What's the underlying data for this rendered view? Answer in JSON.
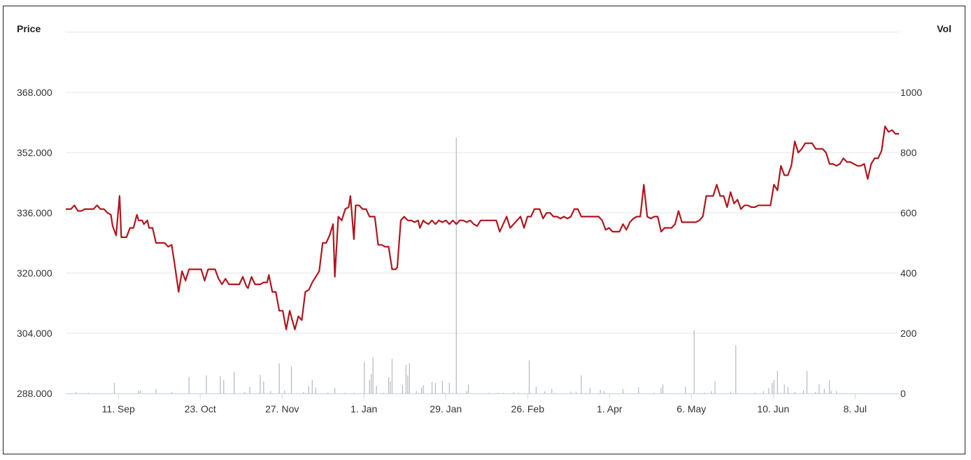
{
  "chart_data": {
    "type": "line",
    "title": "",
    "y_left_label": "Price",
    "y_right_label": "Vol",
    "y_left_ticks": [
      "288.000",
      "304.000",
      "320.000",
      "336.000",
      "352.000",
      "368.000"
    ],
    "y_left_range": [
      288,
      384
    ],
    "y_right_ticks": [
      "0",
      "200",
      "400",
      "600",
      "800",
      "1000"
    ],
    "y_right_range": [
      0,
      1200
    ],
    "x_ticks": [
      "11. Sep",
      "23. Oct",
      "27. Nov",
      "1. Jan",
      "29. Jan",
      "26. Feb",
      "1. Apr",
      "6. May",
      "10. Jun",
      "8. Jul"
    ],
    "x_tick_index": [
      18,
      46,
      74,
      102,
      130,
      158,
      186,
      214,
      242,
      270
    ],
    "x_count": 286,
    "grid": true,
    "colors": {
      "price": "#b0161e",
      "volume": "#b8b8b8",
      "grid": "#e6e6e6",
      "axis": "#cfd8e6"
    },
    "price": [
      [
        0,
        337
      ],
      [
        3,
        337
      ],
      [
        5,
        338
      ],
      [
        7,
        336.5
      ],
      [
        9,
        336.5
      ],
      [
        11,
        337
      ],
      [
        16,
        337
      ],
      [
        18,
        338
      ],
      [
        20,
        337
      ],
      [
        22,
        337
      ],
      [
        24,
        336
      ],
      [
        26,
        335.5
      ],
      [
        27,
        332.5
      ],
      [
        29,
        330
      ],
      [
        31,
        340.5
      ],
      [
        32,
        329.5
      ],
      [
        35,
        329.5
      ],
      [
        37,
        332
      ],
      [
        39,
        332
      ],
      [
        41,
        335.5
      ],
      [
        42,
        334
      ],
      [
        44,
        334
      ],
      [
        45,
        333
      ],
      [
        47,
        334
      ],
      [
        48,
        332
      ],
      [
        50,
        332
      ],
      [
        52,
        328
      ],
      [
        56,
        328
      ],
      [
        57,
        328
      ],
      [
        59,
        327
      ],
      [
        61,
        327.5
      ],
      [
        63,
        321.5
      ],
      [
        65,
        315
      ],
      [
        67,
        320.5
      ],
      [
        69,
        318
      ],
      [
        71,
        321
      ],
      [
        76,
        321
      ],
      [
        78,
        321
      ],
      [
        80,
        318
      ],
      [
        82,
        321
      ],
      [
        86,
        321
      ],
      [
        88,
        318.5
      ],
      [
        90,
        317
      ],
      [
        92,
        318.5
      ],
      [
        94,
        317
      ],
      [
        100,
        317
      ],
      [
        102,
        319
      ],
      [
        104,
        316.5
      ],
      [
        105,
        316
      ],
      [
        107,
        319
      ],
      [
        109,
        317
      ],
      [
        112,
        317
      ],
      [
        114,
        317.5
      ],
      [
        116,
        317.5
      ],
      [
        117,
        319.5
      ],
      [
        119,
        315
      ],
      [
        121,
        315
      ],
      [
        123,
        310
      ],
      [
        125,
        310
      ],
      [
        127,
        305
      ],
      [
        129,
        310
      ],
      [
        132,
        305
      ],
      [
        134,
        308.5
      ],
      [
        136,
        307.5
      ],
      [
        138,
        315
      ],
      [
        140,
        315.5
      ],
      [
        142,
        317.5
      ],
      [
        144,
        319
      ],
      [
        146,
        320.5
      ],
      [
        148,
        328
      ],
      [
        150,
        328
      ],
      [
        152,
        330
      ],
      [
        154,
        333
      ],
      [
        155,
        319
      ],
      [
        157,
        335
      ],
      [
        159,
        334
      ],
      [
        161,
        337
      ],
      [
        163,
        337.5
      ],
      [
        164,
        340.5
      ],
      [
        166,
        329
      ],
      [
        167,
        338
      ],
      [
        169,
        338
      ],
      [
        171,
        337
      ],
      [
        173,
        337
      ],
      [
        175,
        335
      ],
      [
        178,
        335
      ],
      [
        180,
        327.5
      ],
      [
        182,
        327.5
      ],
      [
        184,
        327
      ],
      [
        186,
        327
      ],
      [
        188,
        321
      ],
      [
        190,
        321
      ],
      [
        191,
        321.5
      ],
      [
        193,
        334
      ],
      [
        195,
        335
      ],
      [
        197,
        334
      ],
      [
        199,
        334
      ],
      [
        201,
        333.5
      ],
      [
        203,
        334
      ],
      [
        204,
        332
      ],
      [
        206,
        334
      ],
      [
        207,
        333.5
      ],
      [
        209,
        333
      ],
      [
        211,
        334
      ],
      [
        213,
        333
      ],
      [
        215,
        334
      ],
      [
        217,
        333.5
      ],
      [
        219,
        334
      ],
      [
        221,
        333
      ],
      [
        223,
        334
      ],
      [
        225,
        333
      ],
      [
        227,
        334
      ],
      [
        229,
        334
      ],
      [
        231,
        333.5
      ],
      [
        233,
        334
      ],
      [
        235,
        333
      ],
      [
        237,
        332.5
      ],
      [
        239,
        334
      ],
      [
        243,
        334
      ],
      [
        245,
        334
      ],
      [
        246,
        334
      ],
      [
        248,
        334
      ],
      [
        250,
        331
      ],
      [
        252,
        333
      ],
      [
        254,
        335
      ],
      [
        256,
        332
      ],
      [
        258,
        333
      ],
      [
        260,
        334
      ],
      [
        262,
        335
      ],
      [
        264,
        332
      ],
      [
        266,
        335
      ],
      [
        268,
        335
      ],
      [
        270,
        337
      ],
      [
        272,
        337
      ],
      [
        273,
        337
      ],
      [
        275,
        334.5
      ],
      [
        277,
        336
      ],
      [
        279,
        336
      ],
      [
        281,
        335
      ],
      [
        283,
        335
      ],
      [
        285,
        334.5
      ],
      [
        287,
        335
      ],
      [
        289,
        334.5
      ],
      [
        291,
        335
      ],
      [
        293,
        337
      ],
      [
        295,
        337
      ],
      [
        297,
        335
      ],
      [
        299,
        335
      ],
      [
        301,
        335
      ],
      [
        304,
        335
      ],
      [
        307,
        335
      ],
      [
        309,
        334
      ],
      [
        311,
        331.5
      ],
      [
        313,
        332
      ],
      [
        315,
        331
      ],
      [
        317,
        331
      ],
      [
        319,
        331
      ],
      [
        321,
        333
      ],
      [
        323,
        331.5
      ],
      [
        325,
        333.5
      ],
      [
        327,
        334.5
      ],
      [
        329,
        335
      ],
      [
        331,
        335
      ],
      [
        333,
        343.5
      ],
      [
        335,
        335
      ],
      [
        337,
        334.5
      ],
      [
        339,
        335
      ],
      [
        341,
        335
      ],
      [
        343,
        331
      ],
      [
        345,
        332
      ],
      [
        347,
        332
      ],
      [
        349,
        332
      ],
      [
        351,
        333
      ],
      [
        353,
        336.5
      ],
      [
        355,
        333.5
      ],
      [
        357,
        333.5
      ],
      [
        359,
        333.5
      ],
      [
        361,
        333.5
      ],
      [
        363,
        333.5
      ],
      [
        365,
        334
      ],
      [
        367,
        335
      ],
      [
        369,
        340.5
      ],
      [
        371,
        340.5
      ],
      [
        373,
        340.5
      ],
      [
        375,
        343.5
      ],
      [
        377,
        340.5
      ],
      [
        379,
        340.5
      ],
      [
        381,
        337.5
      ],
      [
        383,
        341.5
      ],
      [
        385,
        338.5
      ],
      [
        387,
        339.5
      ],
      [
        389,
        337
      ],
      [
        391,
        338
      ],
      [
        393,
        338
      ],
      [
        395,
        337.5
      ],
      [
        397,
        337.5
      ],
      [
        399,
        338
      ],
      [
        401,
        338
      ],
      [
        404,
        338
      ],
      [
        406,
        338
      ],
      [
        408,
        343.5
      ],
      [
        410,
        342
      ],
      [
        412,
        348.5
      ],
      [
        414,
        346
      ],
      [
        416,
        346
      ],
      [
        418,
        348.5
      ],
      [
        420,
        355
      ],
      [
        422,
        352
      ],
      [
        424,
        353
      ],
      [
        426,
        354.5
      ],
      [
        428,
        354.5
      ],
      [
        430,
        354.5
      ],
      [
        432,
        353
      ],
      [
        434,
        353
      ],
      [
        436,
        353
      ],
      [
        438,
        352
      ],
      [
        440,
        349
      ],
      [
        442,
        349
      ],
      [
        444,
        348.5
      ],
      [
        446,
        349
      ],
      [
        448,
        350.5
      ],
      [
        450,
        349.5
      ],
      [
        452,
        349.5
      ],
      [
        454,
        349
      ],
      [
        456,
        348.5
      ],
      [
        458,
        348.5
      ],
      [
        460,
        349
      ],
      [
        462,
        345
      ],
      [
        464,
        349
      ],
      [
        466,
        350.5
      ],
      [
        468,
        350.5
      ],
      [
        470,
        352.5
      ],
      [
        472,
        359
      ],
      [
        474,
        357.5
      ],
      [
        476,
        358
      ],
      [
        478,
        357
      ],
      [
        480,
        357
      ]
    ],
    "volume": [
      [
        6,
        5
      ],
      [
        13,
        3
      ],
      [
        28,
        35
      ],
      [
        42,
        12
      ],
      [
        43,
        8
      ],
      [
        52,
        15
      ],
      [
        61,
        4
      ],
      [
        71,
        55
      ],
      [
        81,
        60
      ],
      [
        89,
        58
      ],
      [
        91,
        45
      ],
      [
        97,
        72
      ],
      [
        103,
        4
      ],
      [
        106,
        22
      ],
      [
        112,
        62
      ],
      [
        114,
        40
      ],
      [
        118,
        8
      ],
      [
        123,
        100
      ],
      [
        126,
        10
      ],
      [
        130,
        90
      ],
      [
        137,
        5
      ],
      [
        140,
        25
      ],
      [
        142,
        45
      ],
      [
        144,
        20
      ],
      [
        151,
        3
      ],
      [
        155,
        18
      ],
      [
        161,
        2
      ],
      [
        166,
        3
      ],
      [
        172,
        105
      ],
      [
        175,
        45
      ],
      [
        176,
        65
      ],
      [
        177,
        120
      ],
      [
        179,
        25
      ],
      [
        183,
        3
      ],
      [
        186,
        55
      ],
      [
        187,
        40
      ],
      [
        188,
        115
      ],
      [
        194,
        28
      ],
      [
        196,
        95
      ],
      [
        197,
        60
      ],
      [
        198,
        100
      ],
      [
        202,
        8
      ],
      [
        205,
        20
      ],
      [
        206,
        28
      ],
      [
        211,
        38
      ],
      [
        213,
        35
      ],
      [
        217,
        42
      ],
      [
        218,
        2
      ],
      [
        221,
        35
      ],
      [
        223,
        1
      ],
      [
        225,
        850
      ],
      [
        231,
        8
      ],
      [
        232,
        30
      ],
      [
        244,
        3
      ],
      [
        249,
        2
      ],
      [
        252,
        2
      ],
      [
        258,
        4
      ],
      [
        261,
        2
      ],
      [
        267,
        110
      ],
      [
        271,
        22
      ],
      [
        276,
        8
      ],
      [
        280,
        15
      ],
      [
        282,
        2
      ],
      [
        291,
        6
      ],
      [
        294,
        6
      ],
      [
        297,
        60
      ],
      [
        300,
        2
      ],
      [
        302,
        18
      ],
      [
        308,
        12
      ],
      [
        310,
        8
      ],
      [
        321,
        15
      ],
      [
        330,
        20
      ],
      [
        339,
        3
      ],
      [
        343,
        20
      ],
      [
        344,
        30
      ],
      [
        357,
        22
      ],
      [
        362,
        210
      ],
      [
        368,
        3
      ],
      [
        372,
        8
      ],
      [
        374,
        40
      ],
      [
        383,
        6
      ],
      [
        386,
        160
      ],
      [
        397,
        3
      ],
      [
        402,
        8
      ],
      [
        405,
        18
      ],
      [
        407,
        35
      ],
      [
        408,
        45
      ],
      [
        410,
        75
      ],
      [
        414,
        30
      ],
      [
        416,
        22
      ],
      [
        420,
        5
      ],
      [
        425,
        10
      ],
      [
        427,
        75
      ],
      [
        432,
        5
      ],
      [
        434,
        30
      ],
      [
        437,
        15
      ],
      [
        440,
        45
      ],
      [
        441,
        8
      ],
      [
        444,
        8
      ],
      [
        447,
        1
      ]
    ]
  }
}
